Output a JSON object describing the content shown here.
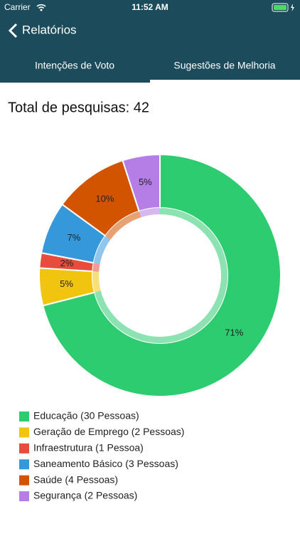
{
  "status_bar": {
    "carrier": "Carrier",
    "time": "11:52 AM"
  },
  "nav": {
    "back": "Relatórios"
  },
  "tabs": [
    "Intenções de Voto",
    "Sugestões de Melhoria"
  ],
  "summary": "Total de pesquisas: 42",
  "chart_data": {
    "type": "donut",
    "categories": [
      "Educação (30 Pessoas)",
      "Geração de Emprego (2 Pessoas)",
      "Infraestrutura (1 Pessoa)",
      "Saneamento Básico (3 Pessoas)",
      "Saúde (4 Pessoas)",
      "Segurança (2 Pessoas)"
    ],
    "values": [
      71,
      5,
      2,
      7,
      10,
      5
    ],
    "value_labels": [
      "71%",
      "5%",
      "2%",
      "7%",
      "10%",
      "5%"
    ],
    "colors": [
      "#2ecc71",
      "#f1c40f",
      "#e74c3c",
      "#3498db",
      "#d35400",
      "#b57de6"
    ]
  }
}
